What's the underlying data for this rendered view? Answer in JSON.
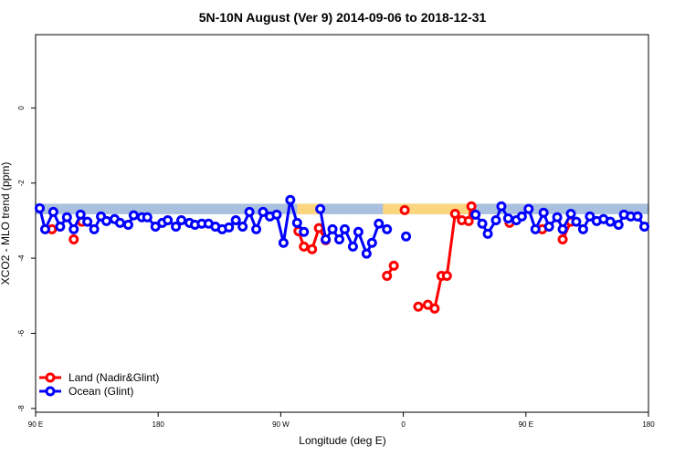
{
  "chart_data": {
    "type": "line",
    "title": "5N-10N August (Ver 9)   2014-09-06 to 2018-12-31",
    "x_label": "Longitude (deg E)",
    "y_label": "XCO2 - MLO trend (ppm)",
    "xlim": [
      90,
      540
    ],
    "ylim": [
      -8.1,
      1.95
    ],
    "xticks": [
      {
        "value": 90,
        "label": "90 E"
      },
      180,
      {
        "value": 270,
        "label": "90 W"
      },
      {
        "value": 360,
        "label": "0"
      },
      {
        "value": 450,
        "label": "90 E"
      },
      {
        "value": 540,
        "label": "180"
      }
    ],
    "yticks": [
      -8,
      -6,
      -4,
      -2,
      0
    ],
    "legend": "bottom-left",
    "band": {
      "range": [
        -2.83,
        -2.55
      ],
      "color": "#a9c0de",
      "land_color": "#fcd67e",
      "land": [
        [
          282,
          300
        ],
        [
          345,
          412
        ]
      ]
    },
    "series": [
      {
        "name": "Land (Nadir&Glint)",
        "color": "#ff0000",
        "x": [
          102,
          null,
          118,
          null,
          124,
          null,
          283,
          287,
          293,
          298,
          303,
          null,
          348,
          353,
          null,
          361,
          null,
          371,
          378,
          383,
          388,
          392,
          398,
          403,
          408,
          410,
          null,
          438,
          null,
          462,
          null,
          477,
          483
        ],
        "values": [
          -3.23,
          null,
          -3.5,
          null,
          -3.03,
          null,
          -3.28,
          -3.69,
          -3.76,
          -3.2,
          -3.52,
          null,
          -4.47,
          -4.2,
          null,
          -2.72,
          null,
          -5.29,
          -5.24,
          -5.34,
          -4.47,
          -4.47,
          -2.82,
          -2.99,
          -3.01,
          -2.62,
          null,
          -3.06,
          null,
          -3.23,
          null,
          -3.5,
          -3.03
        ]
      },
      {
        "name": "Ocean (Glint)",
        "color": "#0000ff",
        "x": [
          93,
          97,
          103,
          108,
          113,
          118,
          123,
          128,
          133,
          138,
          142,
          148,
          152,
          158,
          162,
          168,
          172,
          178,
          183,
          187,
          193,
          197,
          203,
          207,
          212,
          217,
          222,
          227,
          232,
          237,
          242,
          247,
          252,
          257,
          262,
          267,
          272,
          277,
          282,
          287,
          null,
          299,
          303,
          308,
          313,
          317,
          323,
          327,
          333,
          337,
          342,
          348,
          null,
          362,
          null,
          413,
          418,
          422,
          428,
          432,
          437,
          443,
          447,
          452,
          457,
          463,
          467,
          473,
          477,
          483,
          487,
          492,
          497,
          502,
          507,
          512,
          518,
          522,
          527,
          532,
          537
        ],
        "values": [
          -2.67,
          -3.23,
          -2.77,
          -3.16,
          -2.91,
          -3.23,
          -2.84,
          -3.03,
          -3.23,
          -2.89,
          -3.01,
          -2.96,
          -3.06,
          -3.11,
          -2.86,
          -2.91,
          -2.91,
          -3.16,
          -3.06,
          -2.99,
          -3.16,
          -2.99,
          -3.06,
          -3.11,
          -3.08,
          -3.08,
          -3.16,
          -3.23,
          -3.18,
          -2.99,
          -3.16,
          -2.77,
          -3.23,
          -2.77,
          -2.89,
          -2.84,
          -3.59,
          -2.45,
          -3.06,
          -3.3,
          null,
          -2.69,
          -3.5,
          -3.23,
          -3.5,
          -3.23,
          -3.69,
          -3.3,
          -3.88,
          -3.59,
          -3.08,
          -3.23,
          null,
          -3.42,
          null,
          -2.84,
          -3.08,
          -3.35,
          -2.99,
          -2.62,
          -2.94,
          -2.99,
          -2.89,
          -2.69,
          -3.23,
          -2.79,
          -3.16,
          -2.91,
          -3.23,
          -2.82,
          -3.03,
          -3.23,
          -2.89,
          -3.01,
          -2.96,
          -3.03,
          -3.11,
          -2.84,
          -2.89,
          -2.89,
          -3.16
        ]
      }
    ]
  }
}
